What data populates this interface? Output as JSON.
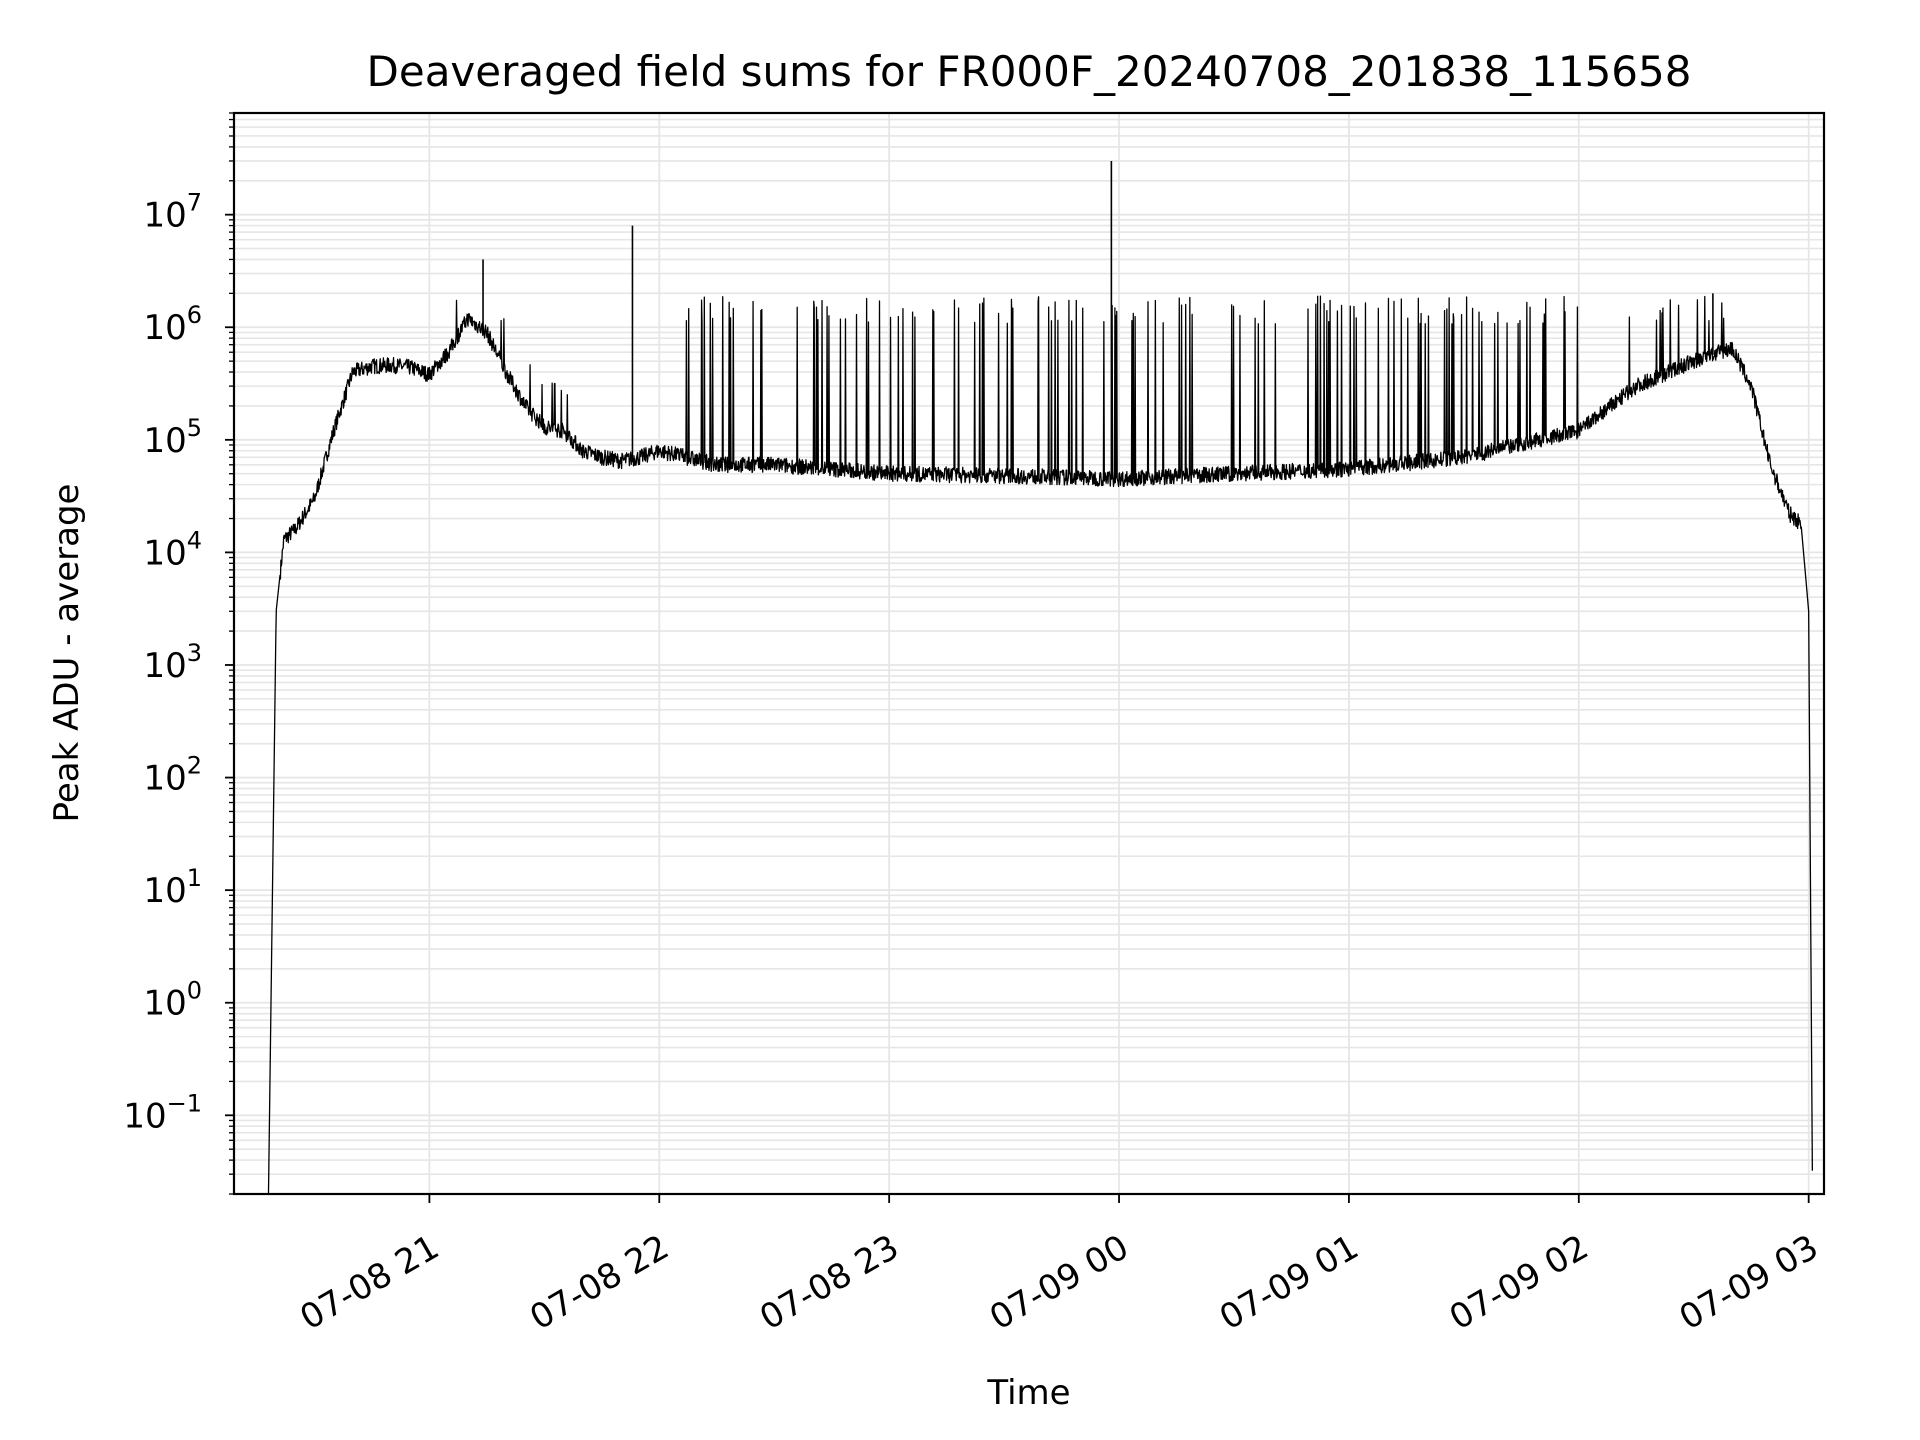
{
  "chart_data": {
    "type": "line",
    "title": "Deaveraged field sums for FR000F_20240708_201838_115658",
    "xlabel": "Time",
    "ylabel": "Peak ADU - average",
    "yscale": "log",
    "grid": true,
    "line_color": "#000000",
    "grid_color": "#e6e6e6",
    "x_start": "07-08 20:18",
    "x_end": "07-09 03:01",
    "xlim": [
      "07-08 20:09",
      "07-09 03:04"
    ],
    "ylim": [
      0.02,
      80000000
    ],
    "x_ticks": [
      "07-08 21",
      "07-08 22",
      "07-08 23",
      "07-09 00",
      "07-09 01",
      "07-09 02",
      "07-09 03"
    ],
    "y_ticks": [
      {
        "base": "10",
        "exp": "−1"
      },
      {
        "base": "10",
        "exp": "0"
      },
      {
        "base": "10",
        "exp": "1"
      },
      {
        "base": "10",
        "exp": "2"
      },
      {
        "base": "10",
        "exp": "3"
      },
      {
        "base": "10",
        "exp": "4"
      },
      {
        "base": "10",
        "exp": "5"
      },
      {
        "base": "10",
        "exp": "6"
      },
      {
        "base": "10",
        "exp": "7"
      }
    ],
    "series": [
      {
        "x": [
          "07-08 20:18",
          "07-08 20:20",
          "07-08 20:22",
          "07-08 20:25",
          "07-08 20:30",
          "07-08 20:35",
          "07-08 20:40",
          "07-08 20:45",
          "07-08 20:50",
          "07-08 20:55",
          "07-08 21:00",
          "07-08 21:05",
          "07-08 21:10",
          "07-08 21:15",
          "07-08 21:20",
          "07-08 21:25",
          "07-08 21:30",
          "07-08 21:35",
          "07-08 21:40",
          "07-08 21:45",
          "07-08 21:50",
          "07-08 21:55",
          "07-08 22:00",
          "07-08 22:15",
          "07-08 22:30",
          "07-08 22:45",
          "07-08 23:00",
          "07-08 23:30",
          "07-09 00:00",
          "07-09 00:30",
          "07-09 01:00",
          "07-09 01:30",
          "07-09 02:00",
          "07-09 02:15",
          "07-09 02:30",
          "07-09 02:40",
          "07-09 02:45",
          "07-09 02:50",
          "07-09 02:55",
          "07-09 02:58",
          "07-09 03:00",
          "07-09 03:01"
        ],
        "y": [
          0.02,
          3000,
          13000,
          16000,
          30000,
          120000,
          400000,
          450000,
          460000,
          440000,
          380000,
          600000,
          1200000,
          900000,
          400000,
          200000,
          130000,
          120000,
          80000,
          70000,
          65000,
          70000,
          80000,
          60000,
          60000,
          55000,
          50000,
          48000,
          45000,
          50000,
          55000,
          70000,
          120000,
          300000,
          500000,
          650000,
          300000,
          60000,
          22000,
          18000,
          3000,
          0.02
        ]
      }
    ],
    "spikes": [
      {
        "x": "07-08 21:14",
        "y": 4000000
      },
      {
        "x": "07-08 21:53",
        "y": 8000000
      },
      {
        "x": "07-08 23:58",
        "y": 30000000
      },
      {
        "x": "07-09 02:35",
        "y": 2000000
      }
    ],
    "band": {
      "x_from": "07-08 22:05",
      "x_to": "07-09 02:38",
      "high": 1500000
    }
  }
}
